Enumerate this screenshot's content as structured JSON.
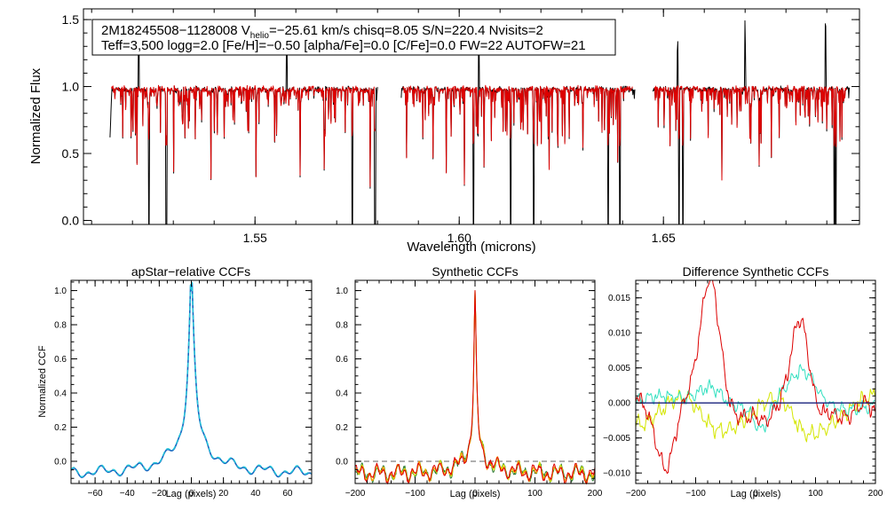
{
  "colors": {
    "axis": "#000000",
    "data": "#000000",
    "model": "#dd0000",
    "ccf_obs": "#1565c0",
    "ccf_obs_dash": "#26c6da",
    "zero_line": "#808080",
    "green": "#2e7d32",
    "orange": "#ff8c00",
    "yellow": "#d4e600",
    "cyan": "#33e0c0",
    "navy": "#1a237e"
  },
  "chart_data": [
    {
      "type": "line",
      "name": "spectrum",
      "annotation_line1_prefix": "2M18245508−1128008  V",
      "annotation_line1_sub": "helio",
      "annotation_line1_suffix": "=−25.61 km/s  chisq=8.05  S/N=220.4  Nvisits=2",
      "annotation_line2": "Teff=3,500 logg=2.0 [Fe/H]=−0.50 [alpha/Fe]=0.0 [C/Fe]=0.0 FW=22 AUTOFW=21",
      "xlabel": "Wavelength (microns)",
      "ylabel": "Normalized Flux",
      "xlim": [
        1.508,
        1.698
      ],
      "ylim": [
        -0.03,
        1.58
      ],
      "xticks": [
        1.55,
        1.6,
        1.65
      ],
      "xtick_labels": [
        "1.55",
        "1.60",
        "1.65"
      ],
      "yticks": [
        0.0,
        0.5,
        1.0,
        1.5
      ],
      "ytick_labels": [
        "0.0",
        "0.5",
        "1.0",
        "1.5"
      ],
      "chips": [
        [
          1.5145,
          1.58
        ],
        [
          1.5858,
          1.643
        ],
        [
          1.6474,
          1.6955
        ]
      ],
      "deep_lines": [
        1.524,
        1.5283,
        1.5738,
        1.5794,
        1.6035,
        1.6126,
        1.6182,
        1.6365,
        1.6393,
        1.6538,
        1.6548,
        1.6918,
        1.6922
      ],
      "emission_lines": [
        1.5215,
        1.5578,
        1.6048,
        1.6535,
        1.67,
        1.6897
      ],
      "series": [
        {
          "name": "data"
        },
        {
          "name": "model"
        }
      ]
    },
    {
      "type": "line",
      "name": "apstar-ccf",
      "title": "apStar−relative CCFs",
      "xlabel": "Lag (pixels)",
      "ylabel": "Normalized CCF",
      "xlim": [
        -75,
        75
      ],
      "ylim": [
        -0.13,
        1.06
      ],
      "xticks": [
        -60,
        -40,
        -20,
        0,
        20,
        40,
        60
      ],
      "xtick_labels": [
        "−60",
        "−40",
        "−20",
        "0",
        "20",
        "40",
        "60"
      ],
      "yticks": [
        0.0,
        0.2,
        0.4,
        0.6,
        0.8,
        1.0
      ],
      "ytick_labels": [
        "0.0",
        "0.2",
        "0.4",
        "0.6",
        "0.8",
        "1.0"
      ],
      "peak": 1.0,
      "series": [
        {
          "name": "visit-1"
        },
        {
          "name": "visit-2"
        }
      ]
    },
    {
      "type": "line",
      "name": "synthetic-ccf",
      "title": "Synthetic CCFs",
      "xlabel": "Lag (pixels)",
      "xlim": [
        -200,
        200
      ],
      "ylim": [
        -0.13,
        1.06
      ],
      "xticks": [
        -200,
        -100,
        0,
        100,
        200
      ],
      "xtick_labels": [
        "−200",
        "−100",
        "0",
        "100",
        "200"
      ],
      "yticks": [
        0.0,
        0.2,
        0.4,
        0.6,
        0.8,
        1.0
      ],
      "ytick_labels": [
        "0.0",
        "0.2",
        "0.4",
        "0.6",
        "0.8",
        "1.0"
      ],
      "zero_line": 0.0,
      "peak": 1.0
    },
    {
      "type": "line",
      "name": "difference-ccf",
      "title": "Difference Synthetic CCFs",
      "xlabel": "Lag (pixels)",
      "xlim": [
        -200,
        200
      ],
      "ylim": [
        -0.0115,
        0.0175
      ],
      "xticks": [
        -200,
        -100,
        0,
        100,
        200
      ],
      "xtick_labels": [
        "−200",
        "−100",
        "0",
        "100",
        "200"
      ],
      "yticks": [
        -0.01,
        -0.005,
        0.0,
        0.005,
        0.01,
        0.015
      ],
      "ytick_labels": [
        "−0.010",
        "−0.005",
        "0.000",
        "0.005",
        "0.010",
        "0.015"
      ],
      "red_max": 0.0165,
      "red_min": -0.0098
    }
  ]
}
